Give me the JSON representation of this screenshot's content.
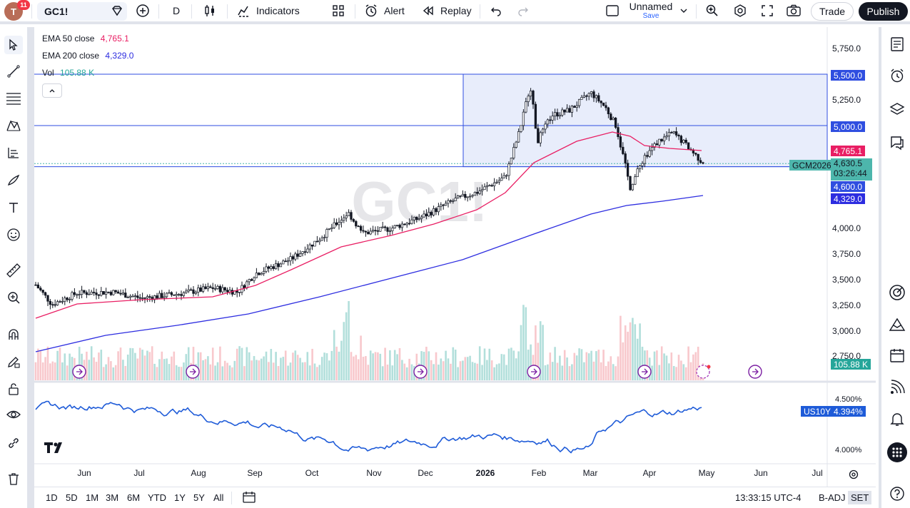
{
  "topbar": {
    "avatar_letter": "T",
    "notification_count": "11",
    "symbol": "GC1!",
    "interval": "D",
    "indicators_label": "Indicators",
    "alert_label": "Alert",
    "replay_label": "Replay",
    "layout_name": "Unnamed",
    "layout_save": "Save",
    "trade_label": "Trade",
    "publish_label": "Publish"
  },
  "legend": {
    "ema50_label": "EMA 50 close",
    "ema50_value": "4,765.1",
    "ema200_label": "EMA 200 close",
    "ema200_value": "4,329.0",
    "vol_label": "Vol",
    "vol_value": "105.88 K"
  },
  "watermark": "GC1!",
  "price_scale": {
    "ticks": [
      "5,750.0",
      "5,250.0",
      "4,000.0",
      "3,750.0",
      "3,500.0",
      "3,250.0",
      "3,000.0",
      "2,750.0"
    ],
    "badge_5500": "5,500.0",
    "badge_5000": "5,000.0",
    "badge_ema50": "4,765.1",
    "badge_price": "4,630.5",
    "badge_countdown": "03:26:44",
    "badge_4600": "4,600.0",
    "badge_ema200": "4,329.0",
    "badge_volume": "105.88 K",
    "contract_label": "GCM2026"
  },
  "lower_pane": {
    "symbol_label": "US10Y",
    "value": "4.394%",
    "ticks": [
      "4.500%",
      "4.000%"
    ]
  },
  "time_axis": [
    "Jun",
    "Jul",
    "Aug",
    "Sep",
    "Oct",
    "Nov",
    "Dec",
    "2026",
    "Feb",
    "Mar",
    "Apr",
    "May",
    "Jun",
    "Jul"
  ],
  "bottombar": {
    "ranges": [
      "1D",
      "5D",
      "1M",
      "3M",
      "6M",
      "YTD",
      "1Y",
      "5Y",
      "All"
    ],
    "clock": "13:33:15 UTC-4",
    "badj": "B-ADJ",
    "set": "SET"
  },
  "colors": {
    "ema50": "#e91e63",
    "ema200": "#2d2de0",
    "up": "#ffffff",
    "down": "#131722",
    "range_fill": "#e8edfb",
    "range_line": "#2f4ee0",
    "price_badge": "#4db6ac",
    "vol_up": "#b2dfdb",
    "vol_down": "#f8c8cc",
    "us10y": "#1e5bd8"
  },
  "chart_data": {
    "type": "candlestick",
    "symbol": "GC1!",
    "price_range": [
      2700,
      5800
    ],
    "ema50_last": 4765.1,
    "ema200_last": 4329.0,
    "last_price": 4630.5,
    "box_top": 5500,
    "box_bottom": 4600,
    "level_lines": [
      5500,
      5000,
      4600
    ],
    "volume_last": "105.88 K",
    "us10y_range": [
      3.9,
      4.6
    ],
    "us10y_last": 4.394
  }
}
